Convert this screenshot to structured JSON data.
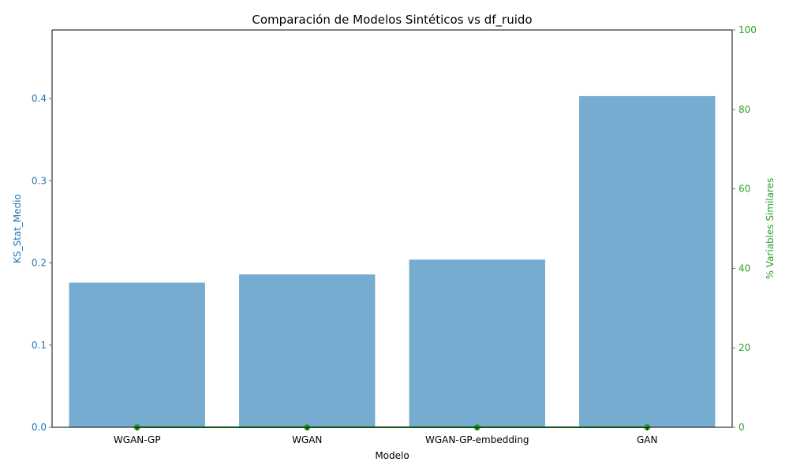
{
  "chart_data": {
    "type": "bar",
    "title": "Comparación de Modelos Sintéticos vs df_ruido",
    "xlabel": "Modelo",
    "ylabel": "KS_Stat_Medio",
    "y2label": "% Variables Similares",
    "categories": [
      "WGAN-GP",
      "WGAN",
      "WGAN-GP-embedding",
      "GAN"
    ],
    "series": [
      {
        "values": [
          0.176,
          0.186,
          0.204,
          0.403
        ],
        "axis": "left",
        "color": "#77acd1"
      },
      {
        "values": [
          0,
          0,
          0,
          0
        ],
        "axis": "right",
        "kind": "line",
        "color": "#2ca02c"
      }
    ],
    "ylim": [
      0,
      0.4835
    ],
    "y2lim": [
      0,
      100
    ],
    "yticks": [
      "0.0",
      "0.1",
      "0.2",
      "0.3",
      "0.4"
    ],
    "y2ticks": [
      "0",
      "20",
      "40",
      "60",
      "80",
      "100"
    ],
    "grid": false,
    "colors": {
      "left_axis": "#1f77b4",
      "right_axis": "#2ca02c",
      "bars": "#77acd1"
    }
  }
}
